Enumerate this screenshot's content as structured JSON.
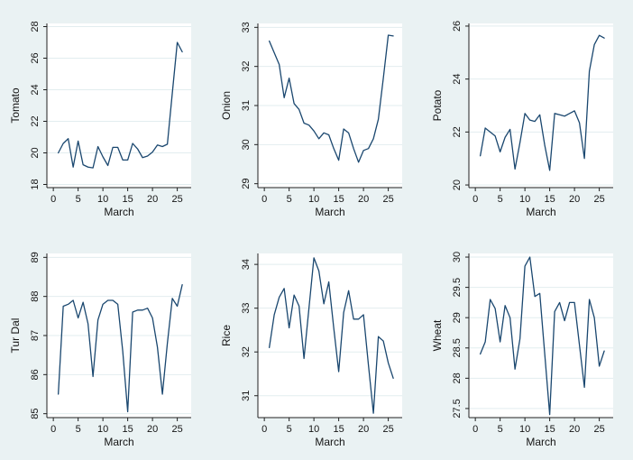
{
  "page": {
    "background": "#EAF2F3"
  },
  "colors": {
    "line": "#1A476F",
    "plot_bg": "#FFFFFF",
    "grid": "#E2EDEF",
    "axis": "#202020",
    "text": "#141414"
  },
  "layout_hints": {
    "rows": 2,
    "cols": 3,
    "legend": "none",
    "grid": "horizontal-only",
    "y_tick_label_rotation": -90,
    "panel_order": [
      "tomato",
      "onion",
      "potato",
      "tur-dal",
      "rice",
      "wheat"
    ]
  },
  "chart_data": [
    {
      "id": "tomato",
      "type": "line",
      "title": "",
      "ylabel": "Tomato",
      "xlabel": "March",
      "x_ticks": [
        0,
        5,
        10,
        15,
        20,
        25
      ],
      "y_ticks": [
        18,
        20,
        22,
        24,
        26,
        28
      ],
      "ylim": [
        17.8,
        28.2
      ],
      "x": [
        1,
        2,
        3,
        4,
        5,
        6,
        7,
        8,
        9,
        10,
        11,
        12,
        13,
        14,
        15,
        16,
        17,
        18,
        19,
        20,
        21,
        22,
        23,
        24,
        25,
        26
      ],
      "values": [
        20.0,
        20.6,
        20.9,
        19.1,
        20.75,
        19.25,
        19.1,
        19.05,
        20.4,
        19.75,
        19.2,
        20.35,
        20.35,
        19.55,
        19.55,
        20.6,
        20.25,
        19.7,
        19.8,
        20.05,
        20.5,
        20.4,
        20.55,
        23.8,
        27.0,
        26.4
      ]
    },
    {
      "id": "onion",
      "type": "line",
      "title": "",
      "ylabel": "Onion",
      "xlabel": "March",
      "x_ticks": [
        0,
        5,
        10,
        15,
        20,
        25
      ],
      "y_ticks": [
        29,
        30,
        31,
        32,
        33
      ],
      "ylim": [
        28.9,
        33.1
      ],
      "x": [
        1,
        2,
        3,
        4,
        5,
        6,
        7,
        8,
        9,
        10,
        11,
        12,
        13,
        14,
        15,
        16,
        17,
        18,
        19,
        20,
        21,
        22,
        23,
        24,
        25,
        26
      ],
      "values": [
        32.65,
        32.35,
        32.05,
        31.2,
        31.7,
        31.05,
        30.9,
        30.55,
        30.5,
        30.35,
        30.15,
        30.3,
        30.25,
        29.9,
        29.6,
        30.4,
        30.3,
        29.9,
        29.55,
        29.85,
        29.9,
        30.15,
        30.65,
        31.7,
        32.8,
        32.78
      ]
    },
    {
      "id": "potato",
      "type": "line",
      "title": "",
      "ylabel": "Potato",
      "xlabel": "March",
      "x_ticks": [
        0,
        5,
        10,
        15,
        20,
        25
      ],
      "y_ticks": [
        20,
        22,
        24,
        26
      ],
      "ylim": [
        19.9,
        26.1
      ],
      "x": [
        1,
        2,
        3,
        4,
        5,
        6,
        7,
        8,
        9,
        10,
        11,
        12,
        13,
        14,
        15,
        16,
        17,
        18,
        19,
        20,
        21,
        22,
        23,
        24,
        25,
        26
      ],
      "values": [
        21.1,
        22.15,
        22.0,
        21.85,
        21.25,
        21.8,
        22.1,
        20.6,
        21.6,
        22.7,
        22.45,
        22.4,
        22.65,
        21.5,
        20.55,
        22.7,
        22.65,
        22.6,
        22.7,
        22.8,
        22.35,
        21.0,
        24.3,
        25.3,
        25.65,
        25.55
      ]
    },
    {
      "id": "tur-dal",
      "type": "line",
      "title": "",
      "ylabel": "Tur Dal",
      "xlabel": "March",
      "x_ticks": [
        0,
        5,
        10,
        15,
        20,
        25
      ],
      "y_ticks": [
        85,
        86,
        87,
        88,
        89
      ],
      "ylim": [
        84.9,
        89.1
      ],
      "x": [
        1,
        2,
        3,
        4,
        5,
        6,
        7,
        8,
        9,
        10,
        11,
        12,
        13,
        14,
        15,
        16,
        17,
        18,
        19,
        20,
        21,
        22,
        23,
        24,
        25,
        26
      ],
      "values": [
        85.5,
        87.75,
        87.8,
        87.9,
        87.45,
        87.85,
        87.3,
        85.95,
        87.4,
        87.8,
        87.9,
        87.9,
        87.8,
        86.6,
        85.05,
        87.6,
        87.65,
        87.65,
        87.7,
        87.45,
        86.7,
        85.5,
        86.8,
        87.95,
        87.75,
        88.3
      ]
    },
    {
      "id": "rice",
      "type": "line",
      "title": "",
      "ylabel": "Rice",
      "xlabel": "March",
      "x_ticks": [
        0,
        5,
        10,
        15,
        20,
        25
      ],
      "y_ticks": [
        31,
        32,
        33,
        34
      ],
      "ylim": [
        30.5,
        34.25
      ],
      "x": [
        1,
        2,
        3,
        4,
        5,
        6,
        7,
        8,
        9,
        10,
        11,
        12,
        13,
        14,
        15,
        16,
        17,
        18,
        19,
        20,
        21,
        22,
        23,
        24,
        25,
        26
      ],
      "values": [
        32.1,
        32.85,
        33.25,
        33.45,
        32.55,
        33.3,
        33.05,
        31.85,
        33.0,
        34.15,
        33.85,
        33.1,
        33.6,
        32.55,
        31.55,
        32.9,
        33.4,
        32.75,
        32.75,
        32.85,
        31.7,
        30.6,
        32.35,
        32.25,
        31.75,
        31.4
      ]
    },
    {
      "id": "wheat",
      "type": "line",
      "title": "",
      "ylabel": "Wheat",
      "xlabel": "March",
      "x_ticks": [
        0,
        5,
        10,
        15,
        20,
        25
      ],
      "y_ticks": [
        27.5,
        28,
        28.5,
        29,
        29.5,
        30
      ],
      "ylim": [
        27.35,
        30.06
      ],
      "x": [
        1,
        2,
        3,
        4,
        5,
        6,
        7,
        8,
        9,
        10,
        11,
        12,
        13,
        14,
        15,
        16,
        17,
        18,
        19,
        20,
        21,
        22,
        23,
        24,
        25,
        26
      ],
      "values": [
        28.4,
        28.6,
        29.3,
        29.15,
        28.6,
        29.2,
        29.0,
        28.15,
        28.65,
        29.85,
        30.0,
        29.35,
        29.4,
        28.4,
        27.4,
        29.1,
        29.25,
        28.95,
        29.25,
        29.25,
        28.55,
        27.85,
        29.3,
        29.0,
        28.2,
        28.45
      ]
    }
  ]
}
